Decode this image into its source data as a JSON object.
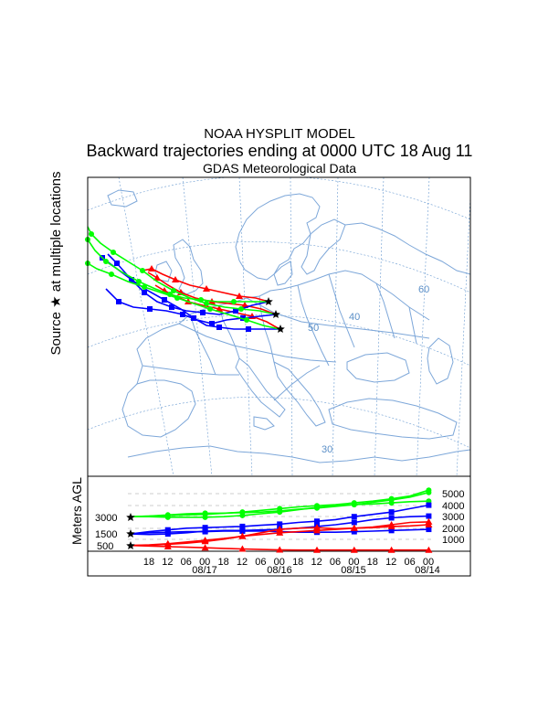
{
  "header": {
    "line1": "NOAA HYSPLIT MODEL",
    "line2": "Backward trajectories ending at 0000 UTC 18 Aug 11",
    "line3": "GDAS Meteorological Data"
  },
  "map": {
    "side_label": "Source ★ at multiple locations",
    "lat_labels": [
      "60",
      "50",
      "40",
      "30"
    ]
  },
  "profile": {
    "axis_label": "Meters AGL",
    "right_ticks": [
      "5000",
      "4000",
      "3000",
      "2000",
      "1000"
    ],
    "start_levels": [
      "3000",
      "1500",
      "500"
    ],
    "hour_ticks": [
      "18",
      "12",
      "06",
      "00",
      "18",
      "12",
      "06",
      "00",
      "18",
      "12",
      "06",
      "00",
      "18",
      "12",
      "06",
      "00"
    ],
    "date_labels": [
      "08/17",
      "08/16",
      "08/15",
      "08/14"
    ]
  },
  "colors": {
    "red": "#ff0000",
    "blue": "#0000ff",
    "green": "#00ff00",
    "map": "#7da7d9",
    "grid": "#6a9bd1"
  }
}
